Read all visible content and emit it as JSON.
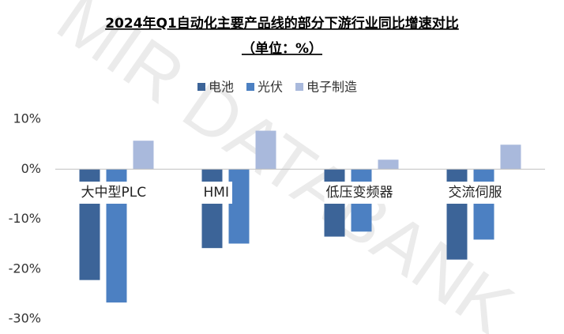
{
  "watermark": "MIR DATABANK",
  "chart_data": {
    "type": "bar",
    "title": "2024年Q1自动化主要产品线的部分下游行业同比增速对比",
    "subtitle": "（单位：%）",
    "categories": [
      "大中型PLC",
      "HMI",
      "低压变频器",
      "交流伺服"
    ],
    "series": [
      {
        "name": "电池",
        "color": "#3c6498",
        "values": [
          -22.2,
          -15.8,
          -13.5,
          -18.1
        ]
      },
      {
        "name": "光伏",
        "color": "#4c80c2",
        "values": [
          -26.7,
          -14.9,
          -12.5,
          -14.1
        ]
      },
      {
        "name": "电子制造",
        "color": "#a9b9dc",
        "values": [
          5.7,
          7.7,
          1.9,
          4.9
        ]
      }
    ],
    "ylim": [
      -30,
      10
    ],
    "yticks": [
      {
        "value": -30,
        "label": "-30%"
      },
      {
        "value": -20,
        "label": "-20%"
      },
      {
        "value": -10,
        "label": "-10%"
      },
      {
        "value": 0,
        "label": "0%"
      },
      {
        "value": 10,
        "label": "10%"
      }
    ],
    "grid": false,
    "legend": "top"
  }
}
